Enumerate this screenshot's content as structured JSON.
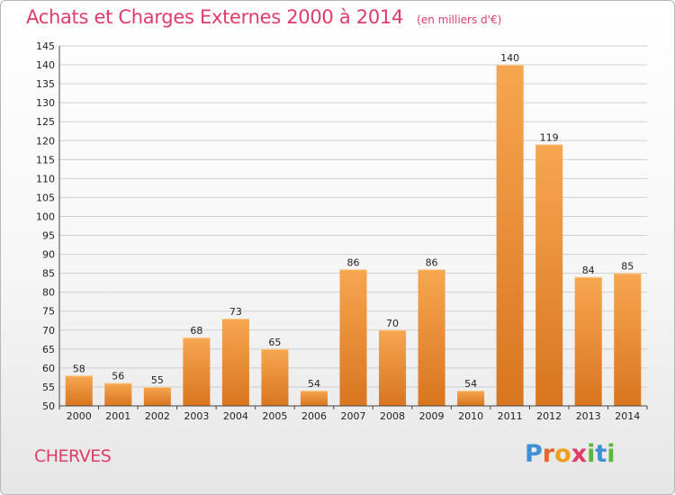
{
  "header": {
    "title": "Achats et Charges Externes 2000 à 2014",
    "subtitle": "(en milliers d'€)"
  },
  "commune": "CHERVES",
  "logo": {
    "letters": [
      "P",
      "r",
      "o",
      "x",
      "i",
      "t",
      "i"
    ]
  },
  "colors": {
    "title": "#e03c6a",
    "bar_light": "#f7a650",
    "bar_dark": "#d9751f"
  },
  "chart_data": {
    "type": "bar",
    "title": "Achats et Charges Externes 2000 à 2014",
    "xlabel": "",
    "ylabel": "",
    "ylim": [
      50,
      145
    ],
    "ytick_step": 5,
    "grid": true,
    "categories": [
      "2000",
      "2001",
      "2002",
      "2003",
      "2004",
      "2005",
      "2006",
      "2007",
      "2008",
      "2009",
      "2010",
      "2011",
      "2012",
      "2013",
      "2014"
    ],
    "values": [
      58,
      56,
      55,
      68,
      73,
      65,
      54,
      86,
      70,
      86,
      54,
      140,
      119,
      84,
      85
    ]
  }
}
